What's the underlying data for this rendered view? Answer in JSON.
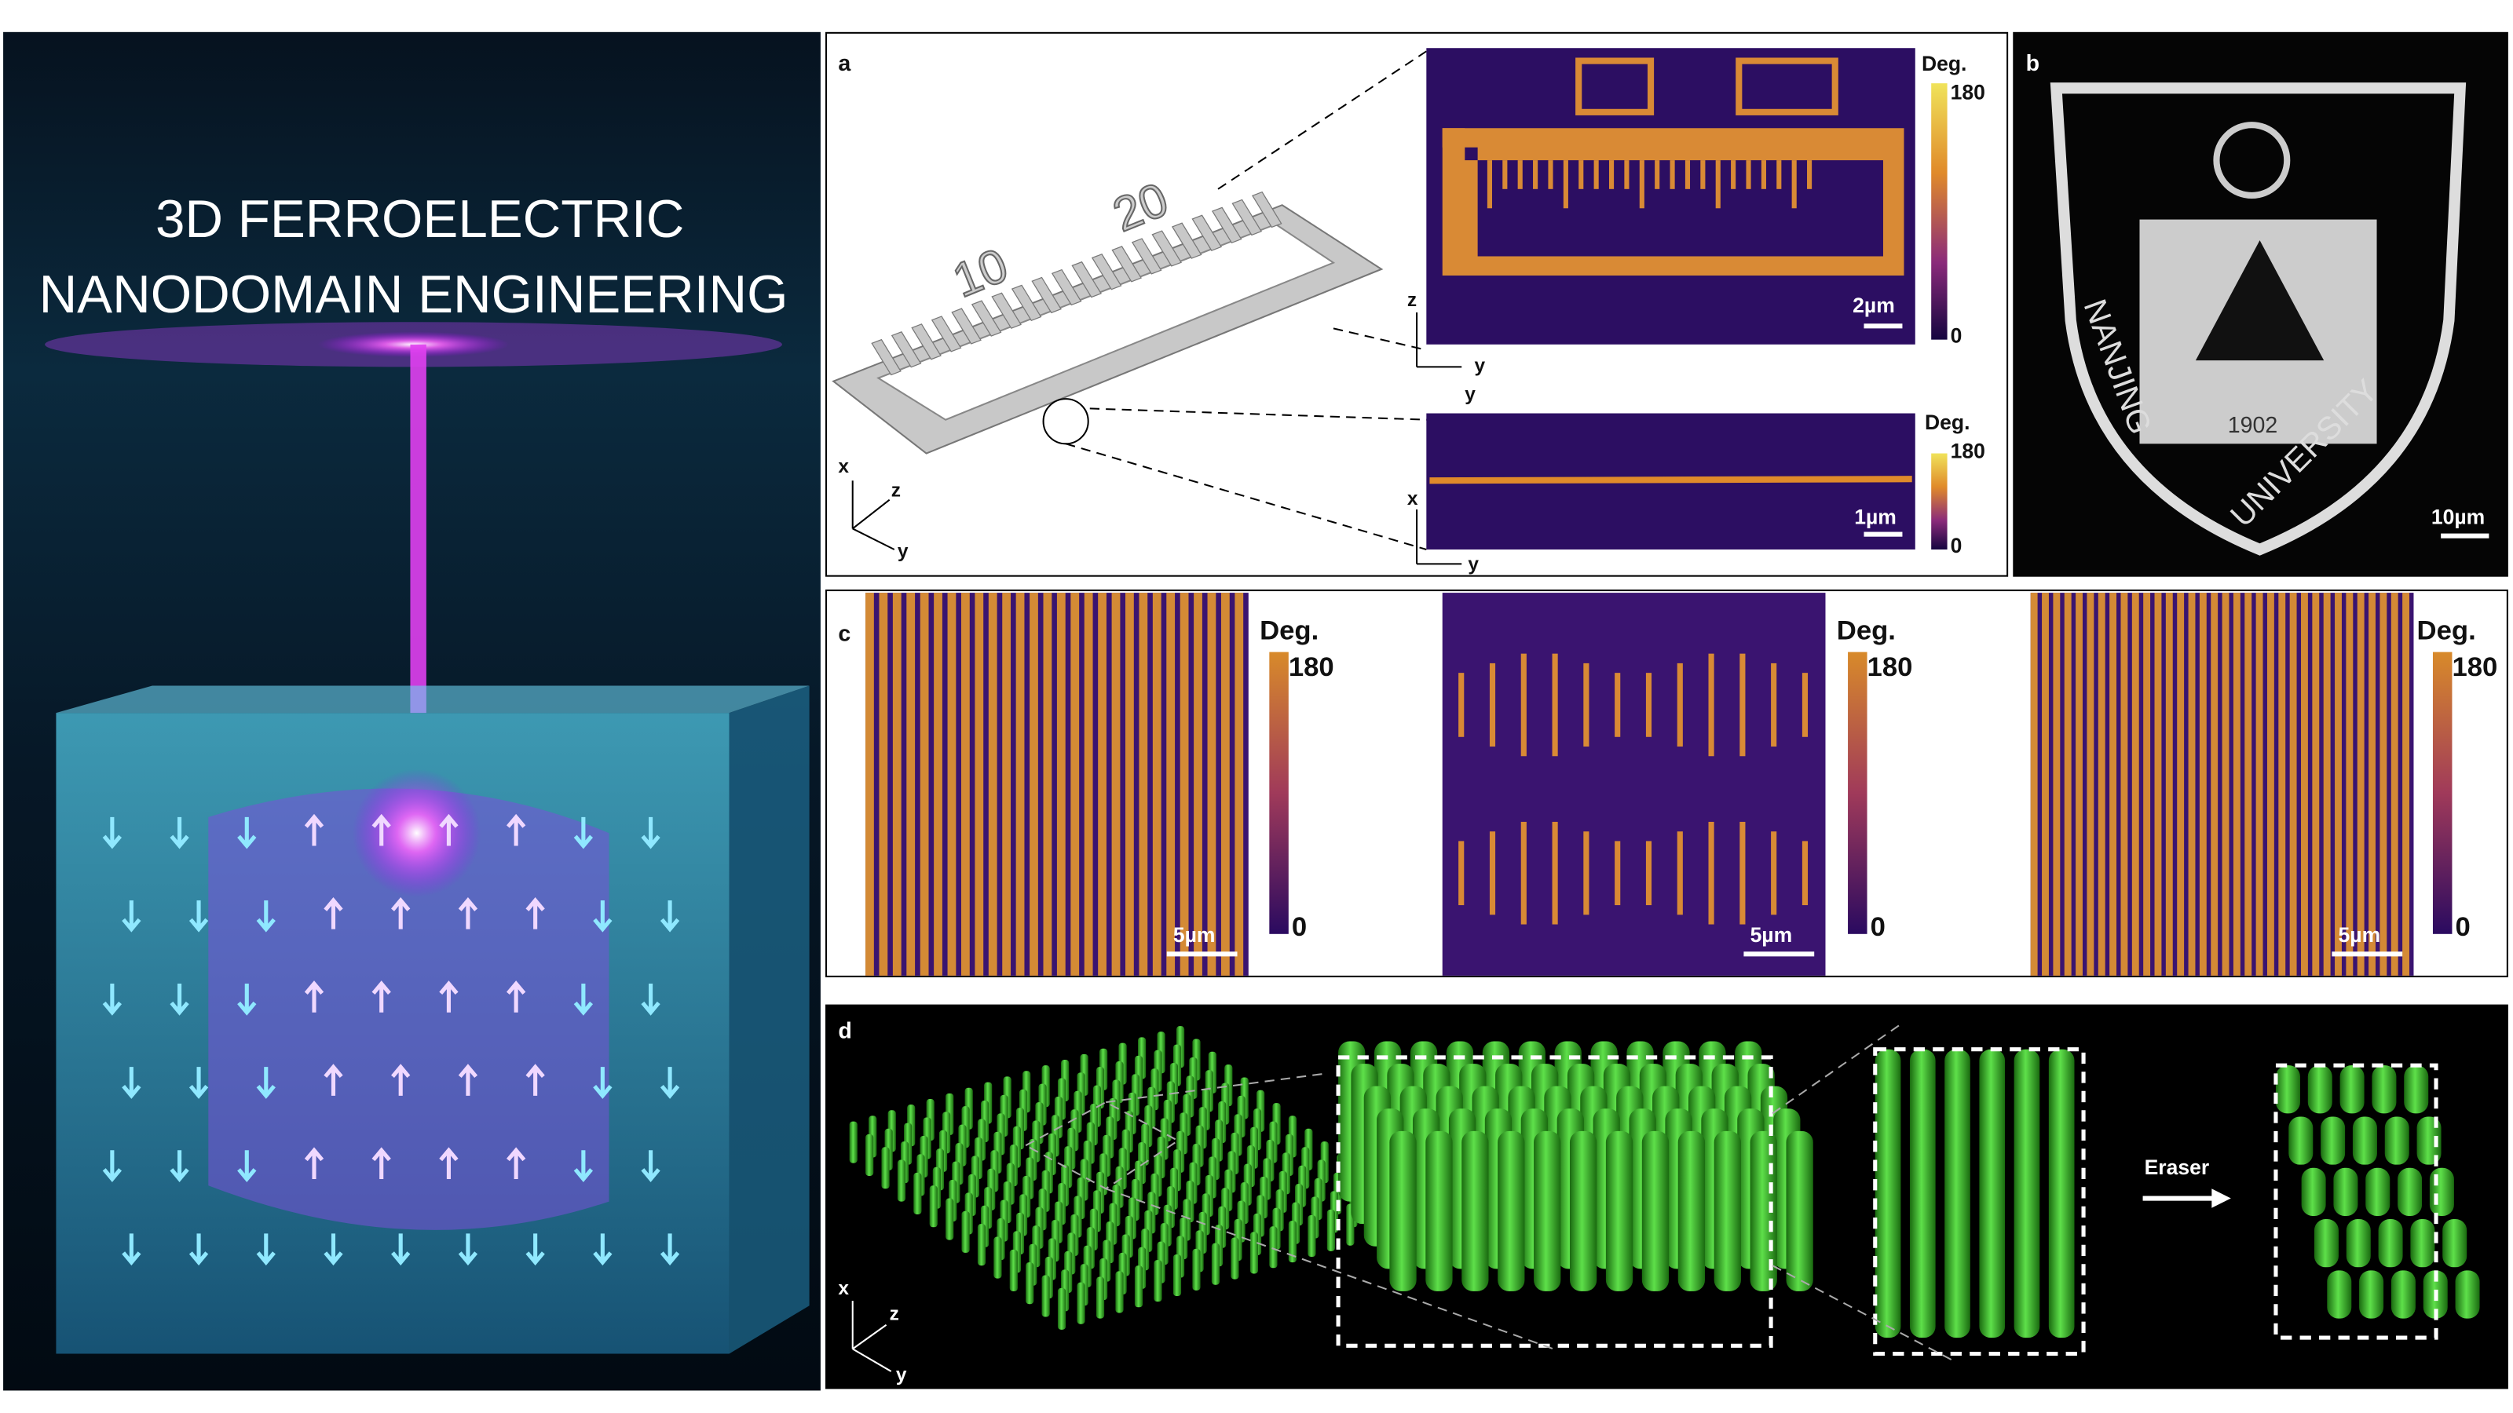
{
  "cover": {
    "title_lines": [
      "3D FERROELECTRIC",
      "NANODOMAIN ENGINEERING"
    ]
  },
  "panels": {
    "a": {
      "label": "a",
      "schematic_text": [
        "10",
        "20"
      ],
      "axes": [
        "x",
        "z",
        "y"
      ],
      "images": [
        {
          "axes": [
            "z",
            "y",
            "y"
          ],
          "colorbar": {
            "title": "Deg.",
            "max": "180",
            "min": "0"
          },
          "scale_bar": "2µm"
        },
        {
          "axes": [
            "x",
            "y"
          ],
          "colorbar": {
            "title": "Deg.",
            "max": "180",
            "min": "0"
          },
          "scale_bar": "1µm"
        }
      ]
    },
    "b": {
      "label": "b",
      "logo_text": [
        "NANJING",
        "UNIVERSITY",
        "1902"
      ],
      "scale_bar": "10µm"
    },
    "c": {
      "label": "c",
      "images": [
        {
          "colorbar": {
            "title": "Deg.",
            "max": "180",
            "min": "0"
          },
          "scale_bar": "5µm"
        },
        {
          "colorbar": {
            "title": "Deg.",
            "max": "180",
            "min": "0"
          },
          "scale_bar": "5µm"
        },
        {
          "colorbar": {
            "title": "Deg.",
            "max": "180",
            "min": "0"
          },
          "scale_bar": "5µm"
        }
      ]
    },
    "d": {
      "label": "d",
      "arrow_label": "Eraser",
      "axes": [
        "x",
        "z",
        "y"
      ]
    }
  }
}
